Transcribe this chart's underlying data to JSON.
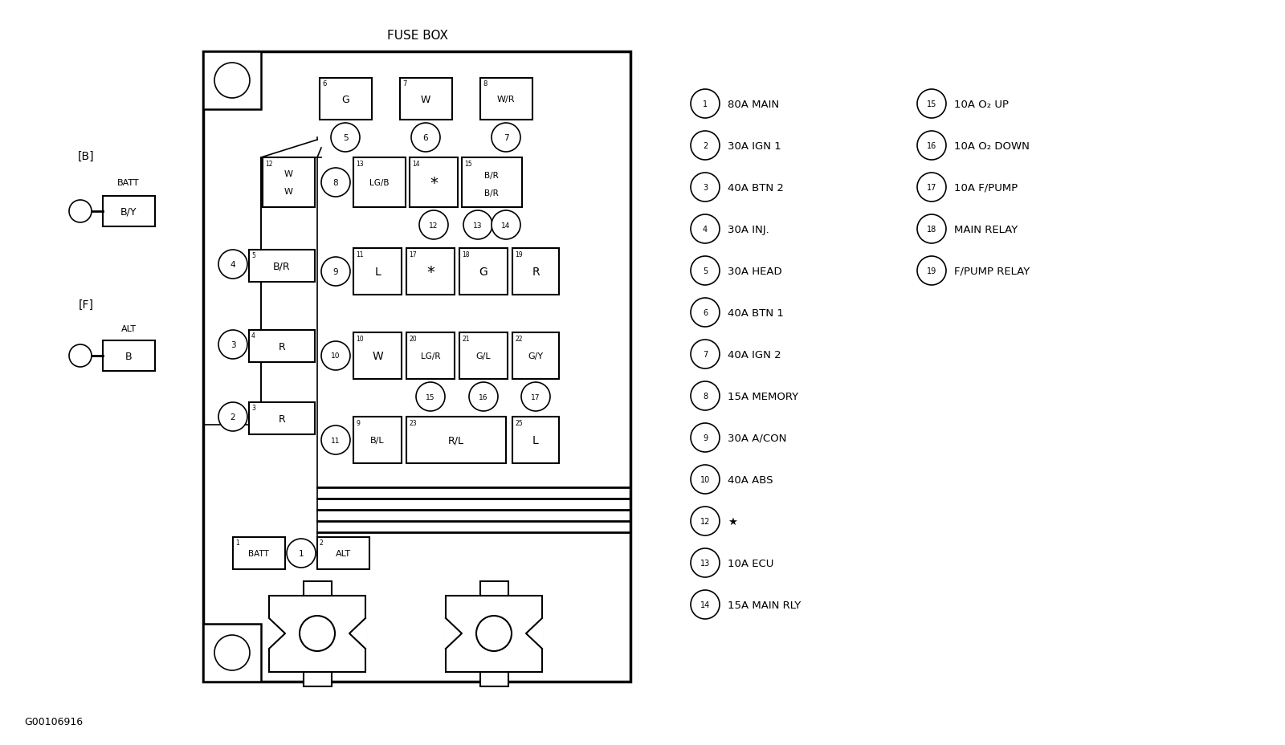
{
  "title": "FUSE BOX",
  "bg_color": "#ffffff",
  "line_color": "#000000",
  "diagram_note": "G00106916",
  "legend_col1": [
    {
      "num": "1",
      "label": "80A MAIN"
    },
    {
      "num": "2",
      "label": "30A IGN 1"
    },
    {
      "num": "3",
      "label": "40A BTN 2"
    },
    {
      "num": "4",
      "label": "30A INJ."
    },
    {
      "num": "5",
      "label": "30A HEAD"
    },
    {
      "num": "6",
      "label": "40A BTN 1"
    },
    {
      "num": "7",
      "label": "40A IGN 2"
    },
    {
      "num": "8",
      "label": "15A MEMORY"
    },
    {
      "num": "9",
      "label": "30A A/CON"
    },
    {
      "num": "10",
      "label": "40A ABS"
    },
    {
      "num": "12",
      "label": "★"
    },
    {
      "num": "13",
      "label": "10A ECU"
    },
    {
      "num": "14",
      "label": "15A MAIN RLY"
    }
  ],
  "legend_col2": [
    {
      "num": "15",
      "label": "10A O₂ UP"
    },
    {
      "num": "16",
      "label": "10A O₂ DOWN"
    },
    {
      "num": "17",
      "label": "10A F/PUMP"
    },
    {
      "num": "18",
      "label": "MAIN RELAY"
    },
    {
      "num": "19",
      "label": "F/PUMP RELAY"
    }
  ]
}
